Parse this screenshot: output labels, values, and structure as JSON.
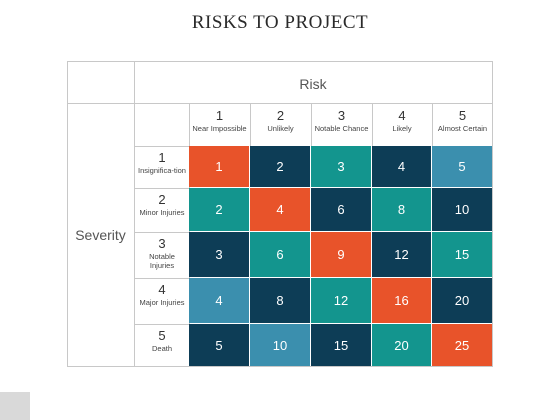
{
  "title": "RISKS TO PROJECT",
  "risk_label": "Risk",
  "severity_label": "Severity",
  "risk_levels": [
    {
      "num": "1",
      "text": "Near Impossible"
    },
    {
      "num": "2",
      "text": "Unlikely"
    },
    {
      "num": "3",
      "text": "Notable Chance"
    },
    {
      "num": "4",
      "text": "Likely"
    },
    {
      "num": "5",
      "text": "Almost Certain"
    }
  ],
  "severity_levels": [
    {
      "num": "1",
      "text": "Insignifica-tion"
    },
    {
      "num": "2",
      "text": "Minor Injuries"
    },
    {
      "num": "3",
      "text": "Notable Injuries"
    },
    {
      "num": "4",
      "text": "Major Injuries"
    },
    {
      "num": "5",
      "text": "Death"
    }
  ],
  "colors": {
    "orange": "#E8532A",
    "navy": "#0D3D56",
    "teal": "#13958E",
    "blue": "#3B8FAE"
  },
  "grid": [
    [
      {
        "v": "1",
        "c": "orange"
      },
      {
        "v": "2",
        "c": "navy"
      },
      {
        "v": "3",
        "c": "teal"
      },
      {
        "v": "4",
        "c": "navy"
      },
      {
        "v": "5",
        "c": "blue"
      }
    ],
    [
      {
        "v": "2",
        "c": "teal"
      },
      {
        "v": "4",
        "c": "orange"
      },
      {
        "v": "6",
        "c": "navy"
      },
      {
        "v": "8",
        "c": "teal"
      },
      {
        "v": "10",
        "c": "navy"
      }
    ],
    [
      {
        "v": "3",
        "c": "navy"
      },
      {
        "v": "6",
        "c": "teal"
      },
      {
        "v": "9",
        "c": "orange"
      },
      {
        "v": "12",
        "c": "navy"
      },
      {
        "v": "15",
        "c": "teal"
      }
    ],
    [
      {
        "v": "4",
        "c": "blue"
      },
      {
        "v": "8",
        "c": "navy"
      },
      {
        "v": "12",
        "c": "teal"
      },
      {
        "v": "16",
        "c": "orange"
      },
      {
        "v": "20",
        "c": "navy"
      }
    ],
    [
      {
        "v": "5",
        "c": "navy"
      },
      {
        "v": "10",
        "c": "blue"
      },
      {
        "v": "15",
        "c": "navy"
      },
      {
        "v": "20",
        "c": "teal"
      },
      {
        "v": "25",
        "c": "orange"
      }
    ]
  ]
}
